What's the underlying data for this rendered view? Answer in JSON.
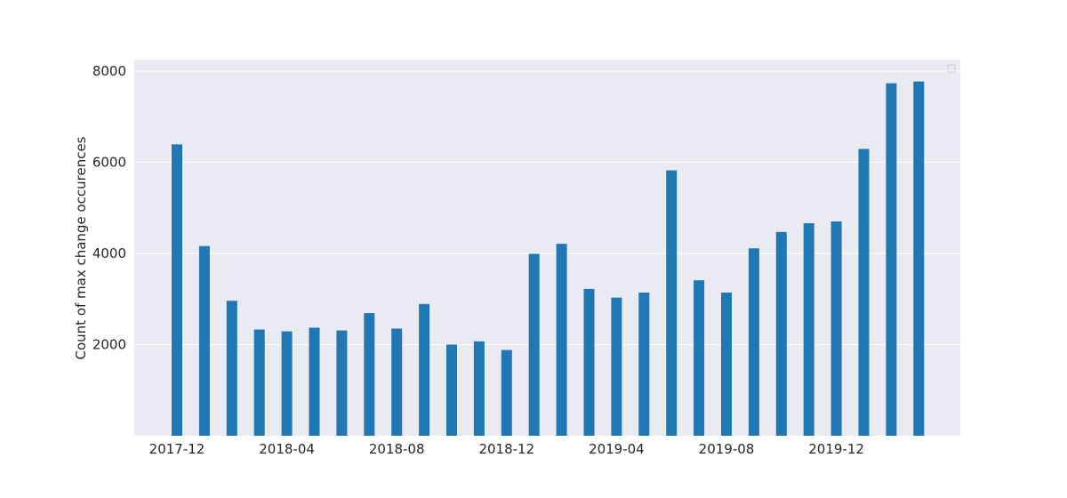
{
  "chart_data": {
    "type": "bar",
    "title": "",
    "xlabel": "",
    "ylabel": "Count of max change occurences",
    "x_start": "2017-12",
    "x_tick_labels": [
      "2017-12",
      "2018-04",
      "2018-08",
      "2018-12",
      "2019-04",
      "2019-08",
      "2019-12"
    ],
    "y_ticks": [
      2000,
      4000,
      6000,
      8000
    ],
    "ylim": [
      0,
      8250
    ],
    "categories": [
      "2017-12",
      "2018-01",
      "2018-02",
      "2018-03",
      "2018-04",
      "2018-05",
      "2018-06",
      "2018-07",
      "2018-08",
      "2018-09",
      "2018-10",
      "2018-11",
      "2018-12",
      "2019-01",
      "2019-02",
      "2019-03",
      "2019-04",
      "2019-05",
      "2019-06",
      "2019-07",
      "2019-08",
      "2019-09",
      "2019-10",
      "2019-11",
      "2019-12",
      "2020-01",
      "2020-02",
      "2020-03"
    ],
    "values": [
      6390,
      4160,
      2960,
      2330,
      2290,
      2370,
      2310,
      2690,
      2350,
      2890,
      2000,
      2070,
      1880,
      3990,
      4210,
      3220,
      3030,
      3140,
      5820,
      3410,
      3140,
      4110,
      4470,
      4660,
      4700,
      6290,
      7730,
      7770
    ],
    "bar_color": "#1f77b4",
    "plot_background": "#eaeaf2",
    "grid": true,
    "legend": "top-right"
  }
}
